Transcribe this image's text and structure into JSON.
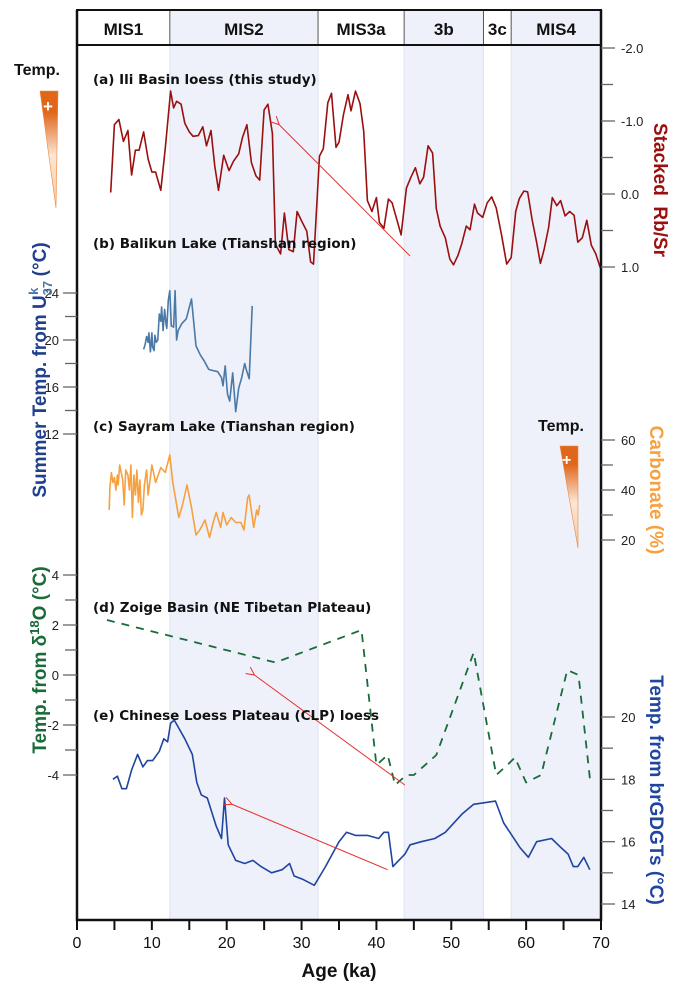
{
  "chart_data": {
    "type": "line",
    "title": "",
    "xlabel": "Age (ka)",
    "xlim": [
      0,
      70
    ],
    "x_ticks": [
      "0",
      "10",
      "20",
      "30",
      "40",
      "50",
      "60",
      "70"
    ],
    "x_minor_step": 5,
    "mis_stages": [
      {
        "label": "MIS1",
        "from": 0,
        "to": 12.4,
        "shaded": false
      },
      {
        "label": "MIS2",
        "from": 12.4,
        "to": 32.2,
        "shaded": true
      },
      {
        "label": "MIS3a",
        "from": 32.2,
        "to": 43.7,
        "shaded": false
      },
      {
        "label": "3b",
        "from": 43.7,
        "to": 54.3,
        "shaded": true
      },
      {
        "label": "3c",
        "from": 54.3,
        "to": 58.0,
        "shaded": false
      },
      {
        "label": "MIS4",
        "from": 58.0,
        "to": 70,
        "shaded": true
      }
    ],
    "temp_indicator_label": "Temp.",
    "temp_indicator_symbol": "+",
    "series": [
      {
        "id": "a",
        "name": "(a) Ili Basin loess (this study)",
        "axis_title": "Stacked  Rb/Sr",
        "axis_side": "right",
        "axis_reversed": true,
        "ylim": [
          -2.0,
          1.0
        ],
        "y_ticks": [
          "-2.0",
          "-1.0",
          "0.0",
          "1.0"
        ],
        "color": "#9b0f0f",
        "style": "solid",
        "x": [
          4.5,
          5.0,
          5.6,
          6.2,
          6.8,
          7.3,
          7.8,
          8.3,
          8.9,
          9.5,
          10.0,
          10.5,
          11.2,
          11.8,
          12.5,
          12.9,
          13.3,
          13.9,
          14.4,
          15.0,
          15.5,
          16.2,
          16.8,
          17.3,
          17.9,
          18.4,
          18.9,
          19.6,
          20.3,
          20.9,
          21.6,
          22.1,
          22.7,
          23.3,
          23.9,
          24.4,
          25.0,
          25.5,
          26.1,
          26.5,
          27.2,
          27.7,
          28.3,
          28.9,
          29.4,
          30.0,
          30.7,
          31.2,
          31.6,
          32.4,
          32.9,
          33.5,
          34.0,
          34.6,
          35.0,
          35.6,
          36.2,
          36.6,
          37.2,
          37.8,
          38.3,
          38.8,
          39.4,
          40.0,
          40.4,
          41.0,
          41.6,
          42.1,
          42.7,
          43.3,
          44.0,
          44.6,
          45.2,
          45.8,
          46.3,
          46.9,
          47.5,
          48.0,
          48.5,
          49.2,
          49.8,
          50.3,
          50.9,
          51.4,
          52.0,
          52.5,
          53.1,
          53.5,
          54.2,
          54.8,
          55.4,
          56.0,
          56.7,
          57.4,
          58.0,
          58.6,
          59.1,
          59.7,
          60.2,
          60.8,
          61.4,
          61.9,
          62.4,
          63.0,
          63.5,
          64.1,
          64.6,
          65.2,
          65.8,
          66.4,
          66.9,
          67.5,
          68.1,
          68.7,
          69.3,
          69.9
        ],
        "y": [
          -0.02,
          -0.95,
          -1.02,
          -0.72,
          -0.87,
          -0.26,
          -0.6,
          -0.6,
          -0.85,
          -0.48,
          -0.3,
          -0.3,
          -0.05,
          -0.63,
          -1.41,
          -1.18,
          -1.27,
          -1.23,
          -0.97,
          -0.85,
          -0.79,
          -0.8,
          -0.92,
          -0.66,
          -0.87,
          -0.39,
          -0.05,
          -0.53,
          -0.32,
          -0.45,
          -0.55,
          -0.77,
          -0.95,
          -0.43,
          -0.25,
          -0.19,
          -1.15,
          -1.23,
          -0.83,
          0.69,
          0.82,
          0.26,
          0.76,
          0.79,
          0.24,
          0.37,
          0.51,
          0.93,
          0.96,
          -0.52,
          -0.62,
          -1.25,
          -1.38,
          -0.64,
          -0.71,
          -1.09,
          -1.36,
          -1.14,
          -1.41,
          -1.24,
          -0.86,
          0.09,
          0.24,
          0.05,
          0.39,
          0.47,
          0.07,
          0.12,
          0.34,
          0.56,
          -0.08,
          -0.23,
          -0.36,
          -0.14,
          -0.23,
          -0.66,
          -0.56,
          0.2,
          0.44,
          0.6,
          0.89,
          0.97,
          0.84,
          0.68,
          0.44,
          0.49,
          0.14,
          0.26,
          0.32,
          0.12,
          0.04,
          0.19,
          0.55,
          0.96,
          0.87,
          0.24,
          0.06,
          -0.04,
          -0.03,
          0.35,
          0.66,
          0.95,
          0.76,
          0.46,
          0.05,
          0.16,
          0.09,
          0.3,
          0.24,
          0.29,
          0.66,
          0.6,
          0.36,
          0.7,
          0.82,
          1.01
        ]
      },
      {
        "id": "b",
        "name": "(b) Balikun Lake (Tianshan region)",
        "axis_title": "Summer Temp. from U37k (°C)",
        "axis_side": "left",
        "ylim": [
          12,
          24
        ],
        "y_ticks": [
          "24",
          "20",
          "16",
          "12"
        ],
        "color": "#4a79a8",
        "style": "solid",
        "x": [
          8.9,
          9.1,
          9.3,
          9.5,
          9.6,
          9.8,
          10.0,
          10.1,
          10.3,
          10.4,
          10.6,
          10.8,
          11.0,
          11.2,
          11.3,
          11.5,
          11.7,
          11.9,
          12.0,
          12.2,
          12.4,
          12.6,
          12.9,
          13.1,
          13.3,
          13.5,
          14.0,
          14.6,
          15.3,
          15.9,
          16.5,
          17.0,
          17.6,
          18.2,
          18.8,
          19.3,
          19.5,
          19.8,
          20.1,
          20.4,
          20.8,
          21.2,
          21.6,
          22.0,
          22.4,
          22.6,
          23.0,
          23.4
        ],
        "y": [
          19.2,
          19.6,
          20.3,
          19.8,
          20.6,
          19.0,
          20.6,
          19.4,
          19.1,
          20.4,
          19.8,
          20.0,
          22.2,
          21.6,
          22.8,
          20.8,
          22.6,
          21.3,
          21.0,
          23.4,
          24.2,
          21.2,
          21.1,
          24.2,
          20.0,
          20.8,
          21.4,
          21.8,
          23.5,
          19.5,
          18.7,
          18.2,
          17.5,
          17.4,
          17.3,
          16.8,
          16.1,
          17.8,
          15.4,
          14.8,
          17.2,
          13.9,
          15.9,
          16.8,
          18.0,
          17.5,
          16.7,
          22.9
        ]
      },
      {
        "id": "c",
        "name": "(c) Sayram Lake (Tianshan region)",
        "axis_title": "Carbonate (%)",
        "axis_side": "right",
        "ylim": [
          20,
          60
        ],
        "y_ticks": [
          "60",
          "40",
          "20"
        ],
        "color": "#f7a040",
        "style": "solid",
        "x": [
          4.3,
          4.4,
          4.6,
          4.8,
          5.0,
          5.2,
          5.4,
          5.5,
          5.7,
          5.9,
          6.1,
          6.3,
          6.5,
          6.8,
          7.0,
          7.2,
          7.4,
          7.6,
          7.8,
          8.0,
          8.2,
          8.4,
          8.6,
          8.8,
          9.0,
          9.3,
          9.5,
          9.8,
          10.0,
          10.5,
          11.2,
          11.8,
          12.4,
          12.8,
          13.6,
          14.1,
          14.7,
          15.3,
          15.9,
          16.4,
          17.1,
          17.7,
          18.2,
          18.6,
          19.2,
          19.5,
          20.0,
          20.6,
          21.2,
          21.9,
          22.3,
          22.8,
          23.0,
          23.6,
          24.0,
          24.2,
          24.4
        ],
        "y": [
          32,
          41,
          47,
          43,
          45,
          40,
          46,
          42,
          50,
          47,
          44,
          34,
          48,
          46,
          40,
          50,
          29,
          46,
          38,
          48,
          35,
          44,
          30,
          32,
          42,
          48,
          38,
          45,
          50,
          43,
          49,
          47,
          54,
          43,
          29,
          34,
          42,
          33,
          22,
          24,
          28,
          21,
          27,
          31,
          25,
          31,
          26,
          29,
          27,
          27,
          24,
          37,
          38,
          25,
          32,
          30,
          34
        ]
      },
      {
        "id": "d",
        "name": "(d) Zoige Basin (NE Tibetan Plateau)",
        "axis_title": "Temp. from δ18O (°C)",
        "axis_side": "left",
        "ylim": [
          -4,
          4
        ],
        "y_ticks": [
          "4",
          "2",
          "0",
          "-2",
          "-4"
        ],
        "color": "#1a6b3a",
        "style": "dashed",
        "x": [
          4.0,
          26.5,
          38.0,
          40.0,
          41.5,
          42.5,
          44.0,
          45.0,
          48.0,
          53.0,
          56.0,
          57.5,
          58.5,
          60.0,
          62.0,
          65.5,
          67.0,
          68.5,
          69.0
        ],
        "y": [
          2.2,
          0.5,
          1.8,
          -3.6,
          -3.2,
          -4.4,
          -4.0,
          -4.0,
          -3.2,
          0.9,
          -4.0,
          -3.6,
          -3.3,
          -4.3,
          -4.0,
          0.2,
          0.0,
          -4.1,
          -4.2
        ]
      },
      {
        "id": "e",
        "name": "(e) Chinese Loess Plateau (CLP) loess",
        "axis_title": "Temp. from brGDGTs (°C)",
        "axis_side": "right",
        "ylim": [
          14,
          20
        ],
        "y_ticks": [
          "20",
          "18",
          "16",
          "14"
        ],
        "color": "#1f45a0",
        "style": "solid",
        "x": [
          4.8,
          5.4,
          6.0,
          6.6,
          7.3,
          8.1,
          8.8,
          9.4,
          10.1,
          11.0,
          11.6,
          12.1,
          12.5,
          13.0,
          14.4,
          15.4,
          16.0,
          16.6,
          17.4,
          18.6,
          19.3,
          19.7,
          20.2,
          21.2,
          22.4,
          23.5,
          24.6,
          26.0,
          27.4,
          28.4,
          29.0,
          30.1,
          31.7,
          33.2,
          35.0,
          36.0,
          37.2,
          38.8,
          40.3,
          41.0,
          41.6,
          42.2,
          43.8,
          44.5,
          46.0,
          47.8,
          49.2,
          51.5,
          53.0,
          55.9,
          57.0,
          59.2,
          60.3,
          61.4,
          63.4,
          64.7,
          65.6,
          66.3,
          66.9,
          67.7,
          68.1,
          68.5
        ],
        "y": [
          18.0,
          18.1,
          17.7,
          17.7,
          18.3,
          18.8,
          18.4,
          18.6,
          18.6,
          18.9,
          19.3,
          19.2,
          19.8,
          19.9,
          19.3,
          18.8,
          17.9,
          17.5,
          17.4,
          16.5,
          16.1,
          17.4,
          15.9,
          15.4,
          15.3,
          15.4,
          15.2,
          15.0,
          15.1,
          15.3,
          14.9,
          14.8,
          14.6,
          15.2,
          16.0,
          16.3,
          16.2,
          16.2,
          16.1,
          16.3,
          16.3,
          15.2,
          15.6,
          15.9,
          16.0,
          16.1,
          16.3,
          16.9,
          17.2,
          17.3,
          16.6,
          15.8,
          15.5,
          16.0,
          16.1,
          15.8,
          15.6,
          15.2,
          15.2,
          15.5,
          15.3,
          15.1
        ]
      }
    ],
    "annotations": [
      {
        "type": "arrow",
        "color": "#e53030",
        "from_x": 44.5,
        "from_series": "a",
        "to_x": 27.0,
        "to_series": "a",
        "from_y": 0.85,
        "to_y": -0.95
      },
      {
        "type": "arrow",
        "color": "#e53030",
        "from_x": 43.8,
        "from_series": "d",
        "to_x": 23.7,
        "to_series": "d",
        "from_y": -4.4,
        "to_y": 0.0
      },
      {
        "type": "arrow",
        "color": "#e53030",
        "from_x": 41.5,
        "from_series": "e",
        "to_x": 20.7,
        "to_series": "e",
        "from_y": 15.1,
        "to_y": 17.2
      }
    ]
  }
}
